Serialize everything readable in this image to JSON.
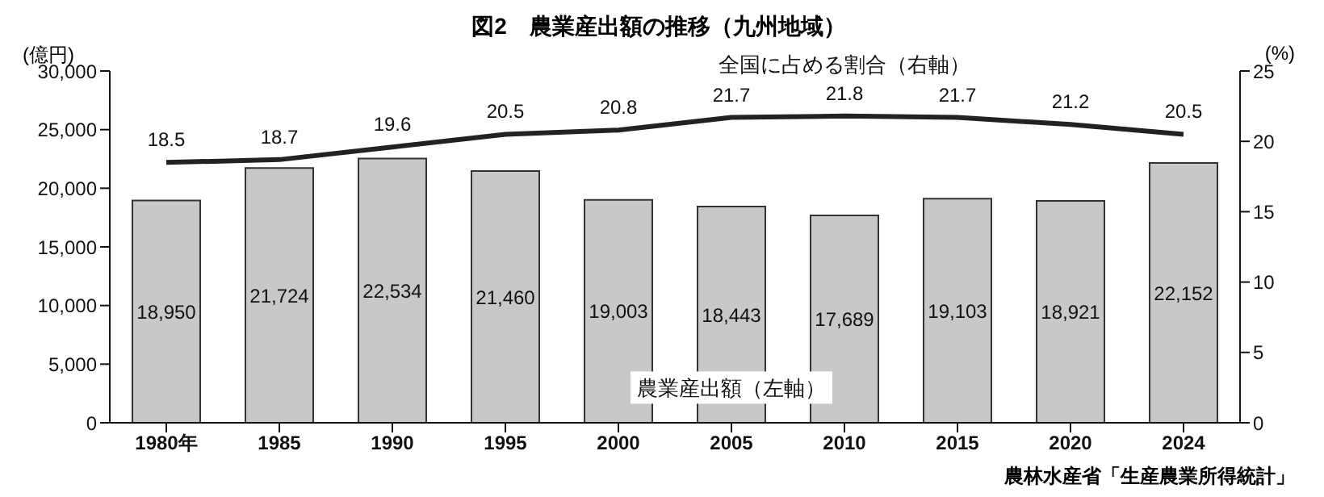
{
  "chart_data": {
    "type": "bar",
    "title": "図2　農業産出額の推移（九州地域）",
    "ylabel": "(億円)",
    "y2label": "(%)",
    "categories": [
      "1980年",
      "1985",
      "1990",
      "1995",
      "2000",
      "2005",
      "2010",
      "2015",
      "2020",
      "2024"
    ],
    "series": [
      {
        "name": "農業産出額（左軸）",
        "color": "#c8c8c8",
        "values": [
          18950,
          21724,
          22534,
          21460,
          19003,
          18443,
          17689,
          19103,
          18921,
          22152
        ],
        "value_labels": [
          "18,950",
          "21,724",
          "22,534",
          "21,460",
          "19,003",
          "18,443",
          "17,689",
          "19,103",
          "18,921",
          "22,152"
        ]
      },
      {
        "name": "全国に占める割合（右軸）",
        "type": "line",
        "axis": "y2",
        "color": "#222222",
        "values": [
          18.5,
          18.7,
          19.6,
          20.5,
          20.8,
          21.7,
          21.8,
          21.7,
          21.2,
          20.5
        ],
        "value_labels": [
          "18.5",
          "18.7",
          "19.6",
          "20.5",
          "20.8",
          "21.7",
          "21.8",
          "21.7",
          "21.2",
          "20.5"
        ]
      }
    ],
    "ylim": [
      0,
      30000
    ],
    "yticks": [
      0,
      {
        "value": 5000,
        "label": "5,000"
      },
      {
        "value": 10000,
        "label": "10,000"
      },
      {
        "value": 15000,
        "label": "15,000"
      },
      {
        "value": 20000,
        "label": "20,000"
      },
      {
        "value": 25000,
        "label": "25,000"
      },
      {
        "value": 30000,
        "label": "30,000"
      }
    ],
    "y2lim": [
      0,
      25
    ],
    "y2ticks": [
      0,
      5,
      10,
      15,
      20,
      25
    ],
    "annotations": [
      "農林水産省「生産農業所得統計」"
    ]
  }
}
